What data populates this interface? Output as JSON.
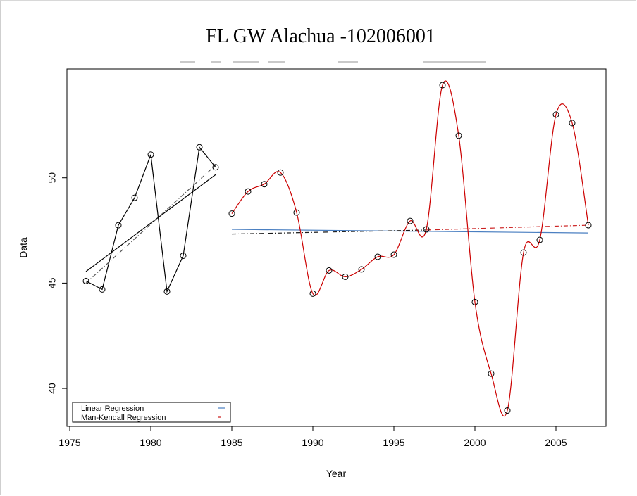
{
  "chart_data": {
    "type": "line",
    "title": "FL GW Alachua -102006001",
    "xlabel": "Year",
    "ylabel": "Data",
    "xlim": [
      1976,
      2007
    ],
    "ylim": [
      38.8,
      54.5
    ],
    "x_ticks": [
      1975,
      1980,
      1985,
      1990,
      1995,
      2000,
      2005
    ],
    "y_ticks": [
      40,
      45,
      50
    ],
    "grid": false,
    "legend_position": "bottom-left",
    "legend": [
      {
        "label": "Linear Regression",
        "color": "#4a7fc1",
        "style": "solid"
      },
      {
        "label": "Man-Kendall Regression",
        "color": "#cc2222",
        "style": "dashdot"
      }
    ],
    "series": [
      {
        "color": "#000000",
        "marker": "circle",
        "x": [
          1976,
          1977,
          1978,
          1979,
          1980,
          1981,
          1982,
          1983,
          1984
        ],
        "y": [
          45.1,
          44.7,
          47.75,
          49.05,
          51.1,
          44.6,
          46.3,
          51.45,
          50.5
        ]
      },
      {
        "color": "#cc0000",
        "marker": "circle",
        "smooth": true,
        "x": [
          1985,
          1986,
          1987,
          1988,
          1989,
          1990,
          1991,
          1992,
          1993,
          1994,
          1995,
          1996,
          1997,
          1998,
          1999,
          2000,
          2001,
          2002,
          2003,
          2004,
          2005,
          2006,
          2007
        ],
        "y": [
          48.3,
          49.35,
          49.7,
          50.25,
          48.35,
          44.5,
          45.6,
          45.3,
          45.65,
          46.25,
          46.35,
          47.95,
          47.55,
          54.4,
          52.0,
          44.1,
          40.7,
          38.95,
          46.45,
          47.05,
          53.0,
          52.6,
          47.75
        ]
      }
    ],
    "trend_lines": [
      {
        "color": "#000000",
        "style": "solid",
        "x": [
          1976,
          1984
        ],
        "y": [
          45.55,
          50.15
        ]
      },
      {
        "color": "#555555",
        "style": "dashdot",
        "x": [
          1976,
          1984
        ],
        "y": [
          45.0,
          50.6
        ]
      },
      {
        "color": "#4a7fc1",
        "style": "solid",
        "x": [
          1985,
          2007
        ],
        "y": [
          47.55,
          47.38
        ]
      },
      {
        "color": "#1a1a1a",
        "style": "dashdot",
        "x": [
          1985,
          1997
        ],
        "y": [
          47.33,
          47.52
        ]
      },
      {
        "color": "#cc2222",
        "style": "dashdot",
        "x": [
          1997,
          2007
        ],
        "y": [
          47.52,
          47.75
        ]
      }
    ]
  }
}
